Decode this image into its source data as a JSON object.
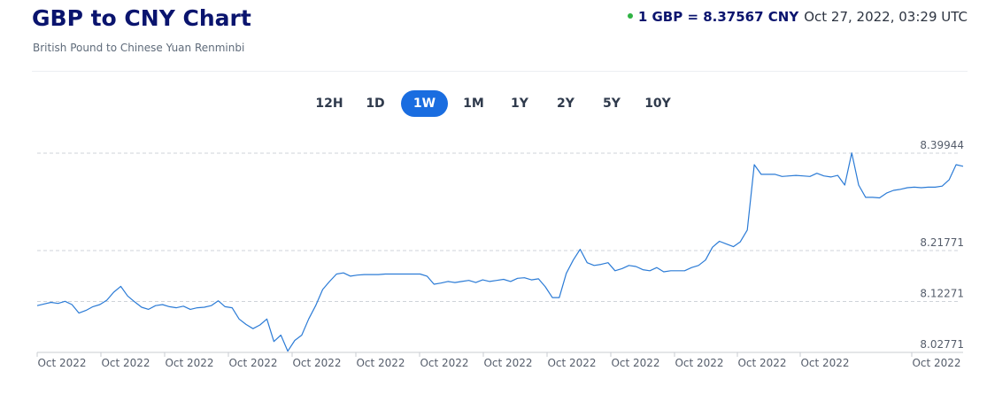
{
  "header": {
    "title": "GBP to CNY Chart",
    "subtitle": "British Pound to Chinese Yuan Renminbi",
    "rate_text": "1 GBP = 8.37567 CNY",
    "timestamp": "Oct 27, 2022, 03:29 UTC",
    "status_color": "#2fb344"
  },
  "ranges": [
    "12H",
    "1D",
    "1W",
    "1M",
    "1Y",
    "2Y",
    "5Y",
    "10Y"
  ],
  "active_range": "1W",
  "colors": {
    "accent": "#1a6de0",
    "line": "#2b7bd6",
    "title": "#0a146e"
  },
  "chart_data": {
    "type": "line",
    "series": [
      {
        "values": [
          8.115,
          8.118,
          8.121,
          8.119,
          8.123,
          8.117,
          8.101,
          8.106,
          8.113,
          8.117,
          8.125,
          8.14,
          8.151,
          8.133,
          8.122,
          8.112,
          8.108,
          8.115,
          8.117,
          8.113,
          8.111,
          8.114,
          8.108,
          8.111,
          8.112,
          8.115,
          8.124,
          8.113,
          8.111,
          8.09,
          8.08,
          8.072,
          8.079,
          8.09,
          8.048,
          8.06,
          8.03,
          8.05,
          8.06,
          8.09,
          8.115,
          8.145,
          8.16,
          8.174,
          8.176,
          8.17,
          8.172,
          8.173,
          8.173,
          8.173,
          8.174,
          8.174,
          8.174,
          8.174,
          8.174,
          8.174,
          8.17,
          8.155,
          8.157,
          8.16,
          8.158,
          8.16,
          8.162,
          8.158,
          8.163,
          8.16,
          8.162,
          8.164,
          8.16,
          8.166,
          8.167,
          8.163,
          8.165,
          8.15,
          8.13,
          8.13,
          8.175,
          8.2,
          8.22,
          8.195,
          8.19,
          8.192,
          8.195,
          8.18,
          8.184,
          8.19,
          8.188,
          8.182,
          8.18,
          8.186,
          8.178,
          8.18,
          8.18,
          8.18,
          8.186,
          8.19,
          8.2,
          8.224,
          8.235,
          8.23,
          8.225,
          8.234,
          8.256,
          8.378,
          8.36,
          8.36,
          8.36,
          8.356,
          8.357,
          8.358,
          8.357,
          8.356,
          8.362,
          8.357,
          8.355,
          8.358,
          8.34,
          8.4,
          8.34,
          8.317,
          8.317,
          8.316,
          8.325,
          8.33,
          8.332,
          8.335,
          8.336,
          8.335,
          8.336,
          8.336,
          8.338,
          8.35,
          8.378,
          8.375
        ]
      }
    ],
    "x_tick_labels": [
      "Oct 2022",
      "Oct 2022",
      "Oct 2022",
      "Oct 2022",
      "Oct 2022",
      "Oct 2022",
      "Oct 2022",
      "Oct 2022",
      "Oct 2022",
      "Oct 2022",
      "Oct 2022",
      "Oct 2022",
      "Oct 2022",
      "Oct 2022"
    ],
    "y_tick_labels": [
      "8.39944",
      "8.21771",
      "8.12271",
      "8.02771"
    ],
    "y_ticks": [
      8.39944,
      8.21771,
      8.12271,
      8.02771
    ],
    "ylim": [
      8.02771,
      8.39944
    ],
    "grid": true,
    "line_color": "#2b7bd6"
  }
}
